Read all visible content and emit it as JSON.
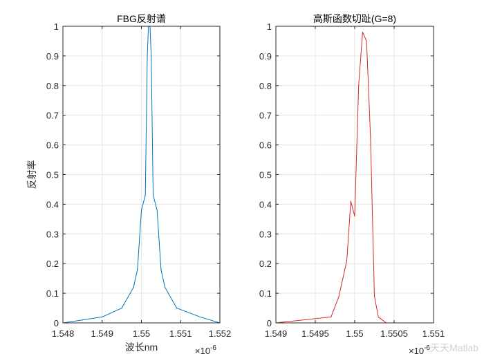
{
  "chart_data": [
    {
      "type": "line",
      "title": "FBG反射谱",
      "xlabel": "波长nm",
      "ylabel": "反射率",
      "x_exponent": "×10",
      "x_exponent_power": "-6",
      "xlim": [
        1.548,
        1.552
      ],
      "ylim": [
        0,
        1
      ],
      "xticks": [
        "1.548",
        "1.549",
        "1.55",
        "1.551",
        "1.552"
      ],
      "yticks": [
        "0",
        "0.1",
        "0.2",
        "0.3",
        "0.4",
        "0.5",
        "0.6",
        "0.7",
        "0.8",
        "0.9",
        "1"
      ],
      "grid": true,
      "color": "#0072BD",
      "series": [
        {
          "x": [
            1.548,
            1.5485,
            1.549,
            1.5495,
            1.5498,
            1.5499,
            1.55,
            1.5501,
            1.55015,
            1.55018,
            1.5502,
            1.55022,
            1.55025,
            1.5503,
            1.5504,
            1.5505,
            1.5506,
            1.5509,
            1.5515,
            1.552
          ],
          "y": [
            0.0,
            0.01,
            0.02,
            0.05,
            0.12,
            0.18,
            0.38,
            0.43,
            0.9,
            1.0,
            1.0,
            1.0,
            0.9,
            0.43,
            0.38,
            0.18,
            0.12,
            0.05,
            0.02,
            0.0
          ]
        }
      ]
    },
    {
      "type": "line",
      "title": "高斯函数切趾(G=8)",
      "x_exponent": "×10",
      "x_exponent_power": "-6",
      "xlim": [
        1.549,
        1.551
      ],
      "ylim": [
        0,
        1
      ],
      "xticks": [
        "1.549",
        "1.5495",
        "1.55",
        "1.5505",
        "1.551"
      ],
      "yticks": [
        "0",
        "0.1",
        "0.2",
        "0.3",
        "0.4",
        "0.5",
        "0.6",
        "0.7",
        "0.8",
        "0.9",
        "1"
      ],
      "grid": true,
      "color": "#D62728",
      "series": [
        {
          "x": [
            1.549,
            1.5497,
            1.5498,
            1.5499,
            1.54995,
            1.55,
            1.55005,
            1.5501,
            1.55015,
            1.5502,
            1.55025,
            1.5503,
            1.5504,
            1.551
          ],
          "y": [
            0.0,
            0.02,
            0.09,
            0.21,
            0.41,
            0.36,
            0.8,
            0.98,
            0.95,
            0.63,
            0.09,
            0.02,
            0.0,
            0.0
          ]
        }
      ]
    }
  ],
  "watermark": "天天Matlab"
}
